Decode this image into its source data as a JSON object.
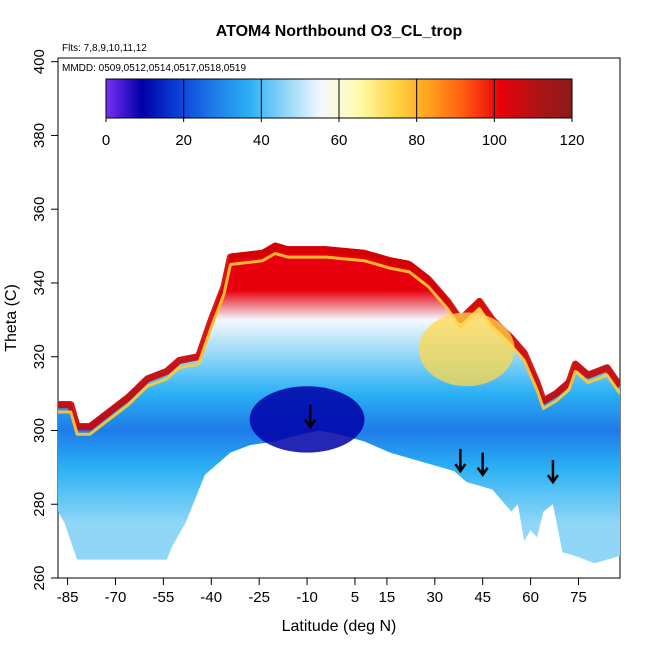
{
  "chart_data": {
    "type": "heatmap",
    "title": "ATOM4 Northbound O3_CL_trop",
    "flights_note": "Flts: 7,8,9,10,11,12",
    "dates_note": "MMDD: 0509,0512,0514,0517,0518,0519",
    "xlabel": "Latitude (deg N)",
    "ylabel": "Theta (C)",
    "xlim": [
      -88,
      88
    ],
    "ylim": [
      260,
      401
    ],
    "x_ticks": [
      "-85",
      "-70",
      "-55",
      "-40",
      "-25",
      "-10",
      "5",
      "15",
      "30",
      "45",
      "60",
      "75"
    ],
    "x_tick_values": [
      -85,
      -70,
      -55,
      -40,
      -25,
      -10,
      5,
      15,
      30,
      45,
      60,
      75
    ],
    "y_ticks": [
      "260",
      "280",
      "300",
      "320",
      "340",
      "360",
      "380",
      "400"
    ],
    "y_tick_values": [
      260,
      280,
      300,
      320,
      340,
      360,
      380,
      400
    ],
    "colorbar": {
      "min": 0,
      "max": 120,
      "tick_labels": [
        "0",
        "20",
        "40",
        "60",
        "80",
        "100",
        "120"
      ],
      "tick_values": [
        0,
        20,
        40,
        60,
        80,
        100,
        120
      ],
      "colors": [
        "#7b2ff7",
        "#0000a8",
        "#0b3fd9",
        "#1f7be8",
        "#2ab0f5",
        "#8fd6f7",
        "#f4f8ff",
        "#fffcb0",
        "#ffd84a",
        "#ffa21e",
        "#ff5a10",
        "#e8000c",
        "#b01414",
        "#8b1a1a"
      ]
    },
    "curtain_top": [
      [
        -88,
        308
      ],
      [
        -84,
        308
      ],
      [
        -82,
        302
      ],
      [
        -78,
        302
      ],
      [
        -72,
        306
      ],
      [
        -66,
        310
      ],
      [
        -60,
        315
      ],
      [
        -54,
        317
      ],
      [
        -50,
        320
      ],
      [
        -44,
        321
      ],
      [
        -40,
        331
      ],
      [
        -36,
        340
      ],
      [
        -34,
        348
      ],
      [
        -24,
        349
      ],
      [
        -20,
        351
      ],
      [
        -16,
        350
      ],
      [
        -4,
        350
      ],
      [
        8,
        349
      ],
      [
        16,
        347
      ],
      [
        22,
        346
      ],
      [
        28,
        342
      ],
      [
        34,
        336
      ],
      [
        38,
        331
      ],
      [
        44,
        336
      ],
      [
        48,
        331
      ],
      [
        54,
        326
      ],
      [
        58,
        322
      ],
      [
        60,
        318
      ],
      [
        62,
        314
      ],
      [
        64,
        309
      ],
      [
        68,
        311
      ],
      [
        72,
        314
      ],
      [
        74,
        319
      ],
      [
        78,
        316
      ],
      [
        84,
        318
      ],
      [
        88,
        313
      ]
    ],
    "curtain_bottom": [
      [
        88,
        266
      ],
      [
        80,
        264
      ],
      [
        74,
        266
      ],
      [
        70,
        267
      ],
      [
        67,
        280
      ],
      [
        64,
        278
      ],
      [
        62,
        271
      ],
      [
        60,
        273
      ],
      [
        58,
        270
      ],
      [
        56,
        280
      ],
      [
        54,
        278
      ],
      [
        48,
        284
      ],
      [
        44,
        285
      ],
      [
        40,
        286
      ],
      [
        36,
        289
      ],
      [
        32,
        290
      ],
      [
        24,
        292
      ],
      [
        16,
        294
      ],
      [
        8,
        297
      ],
      [
        0,
        299
      ],
      [
        -6,
        300
      ],
      [
        -12,
        299
      ],
      [
        -20,
        297
      ],
      [
        -28,
        296
      ],
      [
        -34,
        294
      ],
      [
        -42,
        288
      ],
      [
        -48,
        275
      ],
      [
        -52,
        269
      ],
      [
        -54,
        265
      ],
      [
        -82,
        265
      ],
      [
        -84,
        270
      ],
      [
        -86,
        275
      ],
      [
        -88,
        278
      ]
    ],
    "ozone_fill_bands": [
      {
        "theta": 338,
        "o3": 100
      },
      {
        "theta": 330,
        "o3": 55
      },
      {
        "theta": 320,
        "o3": 45
      },
      {
        "theta": 310,
        "o3": 38
      },
      {
        "theta": 300,
        "o3": 28
      },
      {
        "theta": 290,
        "o3": 40
      },
      {
        "theta": 275,
        "o3": 45
      }
    ],
    "arrows_lat": [
      -9,
      38,
      45,
      67
    ],
    "arrows_theta": [
      301,
      289,
      288,
      286
    ]
  }
}
